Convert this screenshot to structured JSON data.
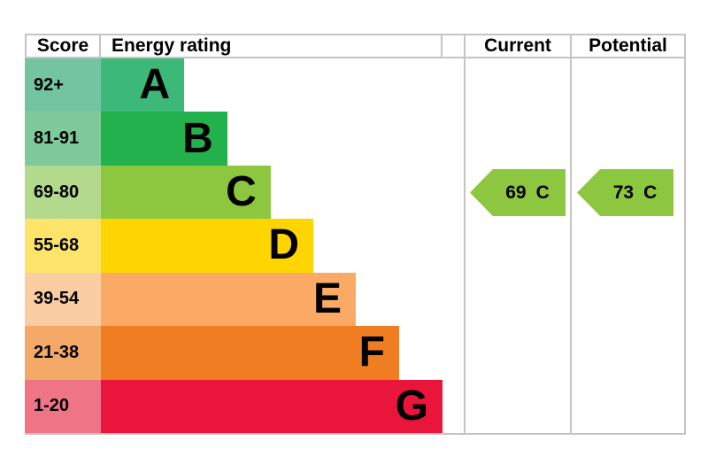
{
  "table": {
    "headers": {
      "score": "Score",
      "rating": "Energy rating",
      "current": "Current",
      "potential": "Potential"
    }
  },
  "chart_data": {
    "type": "bar",
    "description": "EPC energy efficiency rating chart with score bands A-G",
    "categories": [
      "A",
      "B",
      "C",
      "D",
      "E",
      "F",
      "G"
    ],
    "bands": [
      {
        "letter": "A",
        "score_range": "92+",
        "bar_color": "#3cb878",
        "score_color": "#73c5a2",
        "width_pct": 24.4
      },
      {
        "letter": "B",
        "score_range": "81-91",
        "bar_color": "#23b14d",
        "score_color": "#7fc99b",
        "width_pct": 37.0
      },
      {
        "letter": "C",
        "score_range": "69-80",
        "bar_color": "#8dc63f",
        "score_color": "#b3d98d",
        "width_pct": 49.7
      },
      {
        "letter": "D",
        "score_range": "55-68",
        "bar_color": "#ffd500",
        "score_color": "#fce46a",
        "width_pct": 62.2
      },
      {
        "letter": "E",
        "score_range": "39-54",
        "bar_color": "#fbaa65",
        "score_color": "#fbcda3",
        "width_pct": 74.6
      },
      {
        "letter": "F",
        "score_range": "21-38",
        "bar_color": "#f07d22",
        "score_color": "#f4a968",
        "width_pct": 87.3
      },
      {
        "letter": "G",
        "score_range": "1-20",
        "bar_color": "#e9153b",
        "score_color": "#ef7486",
        "width_pct": 100
      }
    ],
    "current": {
      "value": "69",
      "letter": "C",
      "arrow_color": "#8dc63f"
    },
    "potential": {
      "value": "73",
      "letter": "C",
      "arrow_color": "#8dc63f"
    }
  }
}
